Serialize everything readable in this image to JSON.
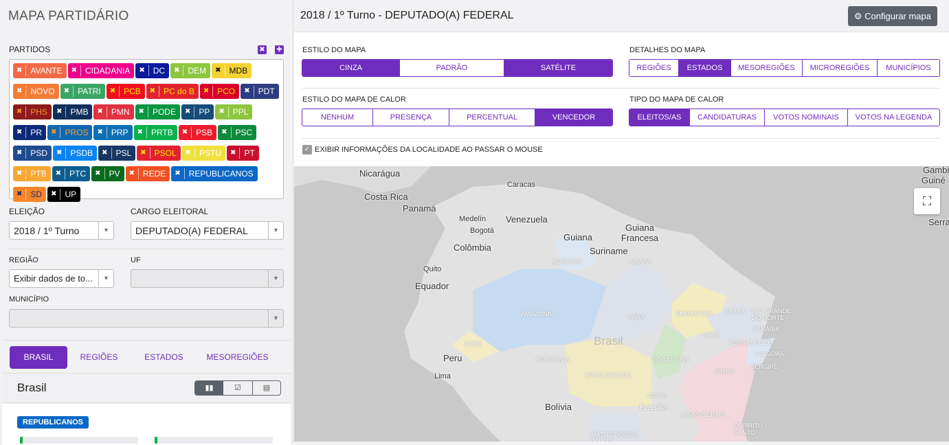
{
  "app_title": "MAPA PARTIDÁRIO",
  "header": {
    "title": "2018 / 1º Turno - DEPUTADO(A) FEDERAL",
    "configure_label": "Configurar mapa"
  },
  "parties_label": "PARTIDOS",
  "parties": [
    {
      "name": "AVANTE",
      "bg": "#f26a45",
      "fg": "#fff"
    },
    {
      "name": "CIDADANIA",
      "bg": "#ec008c",
      "fg": "#fff"
    },
    {
      "name": "DC",
      "bg": "#0a1a9c",
      "fg": "#fff"
    },
    {
      "name": "DEM",
      "bg": "#8dc63f",
      "fg": "#fff"
    },
    {
      "name": "MDB",
      "bg": "#f4d234",
      "fg": "#111"
    },
    {
      "name": "NOVO",
      "bg": "#f47b36",
      "fg": "#fff"
    },
    {
      "name": "PATRI",
      "bg": "#3aa564",
      "fg": "#fff"
    },
    {
      "name": "PCB",
      "bg": "#ef0e1c",
      "fg": "#ffe600"
    },
    {
      "name": "PC do B",
      "bg": "#e12330",
      "fg": "#ffe600"
    },
    {
      "name": "PCO",
      "bg": "#d8002a",
      "fg": "#ffd400"
    },
    {
      "name": "PDT",
      "bg": "#2e3c82",
      "fg": "#fff"
    },
    {
      "name": "PHS",
      "bg": "#8e1b1b",
      "fg": "#f79a2b"
    },
    {
      "name": "PMB",
      "bg": "#102f5c",
      "fg": "#fff"
    },
    {
      "name": "PMN",
      "bg": "#e2313f",
      "fg": "#fff"
    },
    {
      "name": "PODE",
      "bg": "#0a9542",
      "fg": "#fff"
    },
    {
      "name": "PP",
      "bg": "#174b78",
      "fg": "#fff"
    },
    {
      "name": "PPL",
      "bg": "#8dc63f",
      "fg": "#fff"
    },
    {
      "name": "PR",
      "bg": "#0d2a7a",
      "fg": "#fff"
    },
    {
      "name": "PROS",
      "bg": "#1267b3",
      "fg": "#f7a21b"
    },
    {
      "name": "PRP",
      "bg": "#0e6fb5",
      "fg": "#fff"
    },
    {
      "name": "PRTB",
      "bg": "#0bb14a",
      "fg": "#fff"
    },
    {
      "name": "PSB",
      "bg": "#ec1c2c",
      "fg": "#fff"
    },
    {
      "name": "PSC",
      "bg": "#0f8a3c",
      "fg": "#fff"
    },
    {
      "name": "PSD",
      "bg": "#1f4c8f",
      "fg": "#fff"
    },
    {
      "name": "PSDB",
      "bg": "#0b84f0",
      "fg": "#fff"
    },
    {
      "name": "PSL",
      "bg": "#183763",
      "fg": "#fff"
    },
    {
      "name": "PSOL",
      "bg": "#e2232f",
      "fg": "#ffe600"
    },
    {
      "name": "PSTU",
      "bg": "#f0e03d",
      "fg": "#fff"
    },
    {
      "name": "PT",
      "bg": "#c8102e",
      "fg": "#fff"
    },
    {
      "name": "PTB",
      "bg": "#f7a733",
      "fg": "#fff"
    },
    {
      "name": "PTC",
      "bg": "#0d5d91",
      "fg": "#fff"
    },
    {
      "name": "PV",
      "bg": "#0a6a1d",
      "fg": "#fff"
    },
    {
      "name": "REDE",
      "bg": "#f24f23",
      "fg": "#fff"
    },
    {
      "name": "REPUBLICANOS",
      "bg": "#0b68c7",
      "fg": "#fff"
    },
    {
      "name": "SD",
      "bg": "#f7862b",
      "fg": "#1d2a6e"
    },
    {
      "name": "UP",
      "bg": "#000000",
      "fg": "#fff"
    }
  ],
  "filters": {
    "election_label": "ELEIÇÃO",
    "election_value": "2018 / 1º Turno",
    "office_label": "CARGO ELEITORAL",
    "office_value": "DEPUTADO(A) FEDERAL",
    "region_label": "REGIÃO",
    "region_value": "Exibir dados de to...",
    "uf_label": "UF",
    "uf_value": "",
    "municipality_label": "MUNICÍPIO",
    "municipality_value": ""
  },
  "level_tabs": [
    {
      "label": "BRASIL",
      "active": true
    },
    {
      "label": "REGIÕES"
    },
    {
      "label": "ESTADOS"
    },
    {
      "label": "MESOREGIÕES"
    }
  ],
  "section": {
    "title": "Brasil",
    "badge": "REPUBLICANOS",
    "badge_color": "#0b68c7"
  },
  "map_style": {
    "label": "ESTILO DO MAPA",
    "options": [
      {
        "label": "CINZA",
        "active": true
      },
      {
        "label": "PADRÃO"
      },
      {
        "label": "SATÉLITE",
        "active": true
      }
    ]
  },
  "map_details": {
    "label": "DETALHES DO MAPA",
    "options": [
      {
        "label": "REGIÕES"
      },
      {
        "label": "ESTADOS",
        "active": true
      },
      {
        "label": "MESOREGIÕES"
      },
      {
        "label": "MICROREGIÕES"
      },
      {
        "label": "MUNICÍPIOS"
      }
    ]
  },
  "heat_style": {
    "label": "ESTILO DO MAPA DE CALOR",
    "options": [
      {
        "label": "NENHUM"
      },
      {
        "label": "PRESENÇA"
      },
      {
        "label": "PERCENTUAL"
      },
      {
        "label": "VENCEDOR",
        "active": true
      }
    ]
  },
  "heat_type": {
    "label": "TIPO DO MAPA DE CALOR",
    "options": [
      {
        "label": "ELEITOS/AS",
        "active": true
      },
      {
        "label": "CANDIDATURAS"
      },
      {
        "label": "VOTOS NOMINAIS"
      },
      {
        "label": "VOTOS NA LEGENDA"
      }
    ]
  },
  "hover_checkbox": {
    "label": "EXIBIR INFORMAÇÕES DA LOCALIDADE AO PASSAR O MOUSE",
    "checked": true
  },
  "accent": "#6f2dbd",
  "map_labels": {
    "nicaragua": "Nicarágua",
    "costa_rica": "Costa Rica",
    "panama": "Panamá",
    "caracas": "Caracas",
    "venezuela": "Venezuela",
    "medelin": "Medelín",
    "bogota": "Bogotá",
    "colombia": "Colômbia",
    "guiana": "Guiana",
    "suriname": "Suriname",
    "guiana_francesa": "Guiana Francesa",
    "quito": "Quito",
    "equador": "Equador",
    "peru": "Peru",
    "lima": "Lima",
    "bolivia": "Bolívia",
    "brasil": "Brasil",
    "gambia": "Gambia",
    "guine": "Guiné",
    "serra": "Serra",
    "roraima": "RORAIMA",
    "amapa": "AMAPÁ",
    "amazonas": "AMAZONAS",
    "para": "PARÁ",
    "maranhao": "MARANHÃO",
    "ceara": "CEARÁ",
    "rn": "RIO GRANDE DO NORTE",
    "paraiba": "PARAÍBA",
    "pernambuco": "PERNAMBUCO",
    "alagoas": "ALAGOAS",
    "sergipe": "SERGIPE",
    "piaui": "PIAUÍ",
    "acre": "ACRE",
    "rondonia": "RONDÔNIA",
    "mato_grosso": "MATO GROSSO",
    "tocantins": "TOCANTINS",
    "bahia": "BAHIA",
    "goias": "GOIÁS",
    "brasilia": "Brasília",
    "minas": "MINAS GERAIS",
    "es": "ESPÍRITO SANTO",
    "ms": "MATO GROSSO DO SUL"
  }
}
